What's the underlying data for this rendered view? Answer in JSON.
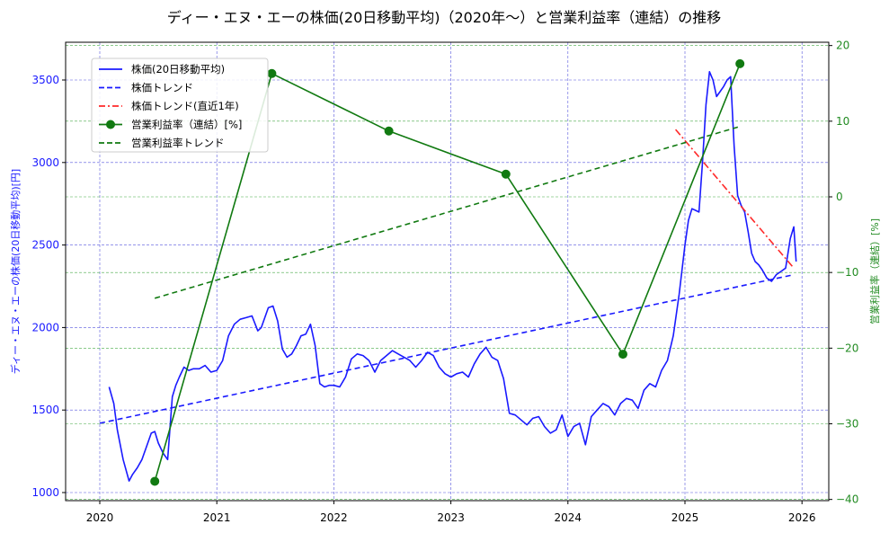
{
  "chart_data": {
    "type": "line",
    "title": "ディー・エヌ・エーの株価(20日移動平均)（2020年～）と営業利益率（連結）の推移",
    "xlabel": "",
    "ylabel_left": "ディー・エヌ・エーの株価(20日移動平均)[円]",
    "ylabel_right": "営業利益率（連結）[%]",
    "x_ticks": [
      "2020",
      "2021",
      "2022",
      "2023",
      "2024",
      "2025",
      "2026"
    ],
    "x_range": [
      2019.7,
      2026.23
    ],
    "ylim_left": [
      950,
      3730
    ],
    "yticks_left": [
      1000,
      1500,
      2000,
      2500,
      3000,
      3500
    ],
    "ylim_right": [
      -40.5,
      20.5
    ],
    "yticks_right": [
      -40,
      -30,
      -20,
      -10,
      0,
      10,
      20
    ],
    "grid": true,
    "legend_position": "upper left",
    "legend": [
      {
        "label": "株価(20日移動平均)",
        "style": "solid",
        "color": "#1a1aff",
        "marker": false
      },
      {
        "label": "株価トレンド",
        "style": "dashed",
        "color": "#1a1aff",
        "marker": false
      },
      {
        "label": "株価トレンド(直近1年)",
        "style": "dashdot",
        "color": "#ff2a2a",
        "marker": false
      },
      {
        "label": "営業利益率（連結）[%]",
        "style": "solid",
        "color": "#117a11",
        "marker": true
      },
      {
        "label": "営業利益率トレンド",
        "style": "dashed",
        "color": "#117a11",
        "marker": false
      }
    ],
    "series": [
      {
        "name": "株価(20日移動平均)",
        "axis": "left",
        "color": "#1a1aff",
        "x": [
          2020.08,
          2020.12,
          2020.15,
          2020.2,
          2020.25,
          2020.28,
          2020.32,
          2020.36,
          2020.4,
          2020.44,
          2020.47,
          2020.5,
          2020.54,
          2020.58,
          2020.62,
          2020.65,
          2020.68,
          2020.72,
          2020.76,
          2020.8,
          2020.85,
          2020.9,
          2020.95,
          2021.0,
          2021.05,
          2021.1,
          2021.15,
          2021.2,
          2021.25,
          2021.3,
          2021.35,
          2021.38,
          2021.41,
          2021.44,
          2021.48,
          2021.52,
          2021.56,
          2021.6,
          2021.64,
          2021.68,
          2021.72,
          2021.76,
          2021.8,
          2021.84,
          2021.88,
          2021.92,
          2021.96,
          2022.0,
          2022.05,
          2022.1,
          2022.15,
          2022.2,
          2022.25,
          2022.3,
          2022.35,
          2022.4,
          2022.45,
          2022.5,
          2022.55,
          2022.6,
          2022.65,
          2022.7,
          2022.75,
          2022.8,
          2022.85,
          2022.9,
          2022.95,
          2023.0,
          2023.05,
          2023.1,
          2023.15,
          2023.2,
          2023.25,
          2023.3,
          2023.35,
          2023.4,
          2023.45,
          2023.5,
          2023.55,
          2023.6,
          2023.65,
          2023.7,
          2023.75,
          2023.8,
          2023.85,
          2023.9,
          2023.95,
          2024.0,
          2024.05,
          2024.1,
          2024.15,
          2024.2,
          2024.25,
          2024.3,
          2024.35,
          2024.4,
          2024.45,
          2024.5,
          2024.55,
          2024.6,
          2024.65,
          2024.7,
          2024.75,
          2024.8,
          2024.85,
          2024.9,
          2024.95,
          2025.0,
          2025.03,
          2025.06,
          2025.09,
          2025.12,
          2025.15,
          2025.18,
          2025.21,
          2025.24,
          2025.27,
          2025.3,
          2025.33,
          2025.36,
          2025.39,
          2025.42,
          2025.45,
          2025.48,
          2025.51,
          2025.54,
          2025.57,
          2025.6,
          2025.63,
          2025.66,
          2025.7,
          2025.74,
          2025.78,
          2025.82,
          2025.86,
          2025.9,
          2025.93,
          2025.95
        ],
        "values": [
          1640,
          1540,
          1380,
          1200,
          1070,
          1110,
          1150,
          1200,
          1280,
          1360,
          1370,
          1300,
          1240,
          1200,
          1580,
          1650,
          1700,
          1760,
          1740,
          1750,
          1750,
          1770,
          1730,
          1740,
          1800,
          1950,
          2020,
          2050,
          2060,
          2070,
          1980,
          2000,
          2060,
          2120,
          2130,
          2040,
          1870,
          1820,
          1840,
          1890,
          1950,
          1960,
          2020,
          1890,
          1660,
          1640,
          1650,
          1650,
          1640,
          1700,
          1810,
          1840,
          1830,
          1800,
          1730,
          1800,
          1830,
          1860,
          1840,
          1820,
          1800,
          1760,
          1800,
          1850,
          1830,
          1760,
          1720,
          1700,
          1720,
          1730,
          1700,
          1780,
          1840,
          1880,
          1820,
          1800,
          1690,
          1480,
          1470,
          1440,
          1410,
          1450,
          1460,
          1400,
          1360,
          1380,
          1470,
          1340,
          1400,
          1420,
          1290,
          1460,
          1500,
          1540,
          1520,
          1470,
          1540,
          1570,
          1560,
          1510,
          1620,
          1660,
          1640,
          1740,
          1800,
          1950,
          2200,
          2500,
          2650,
          2720,
          2710,
          2700,
          3000,
          3350,
          3550,
          3500,
          3400,
          3430,
          3460,
          3500,
          3520,
          3100,
          2800,
          2740,
          2700,
          2580,
          2450,
          2400,
          2380,
          2350,
          2300,
          2280,
          2320,
          2340,
          2360,
          2540,
          2610,
          2400
        ],
        "style": "solid"
      },
      {
        "name": "株価トレンド",
        "axis": "left",
        "color": "#1a1aff",
        "x": [
          2020.0,
          2025.93
        ],
        "values": [
          1420,
          2320
        ],
        "style": "dashed"
      },
      {
        "name": "株価トレンド(直近1年)",
        "axis": "left",
        "color": "#ff2a2a",
        "x": [
          2024.92,
          2025.93
        ],
        "values": [
          3200,
          2360
        ],
        "style": "dashdot"
      },
      {
        "name": "営業利益率（連結）[%]",
        "axis": "right",
        "color": "#117a11",
        "x": [
          2020.47,
          2021.47,
          2022.47,
          2023.47,
          2024.47,
          2025.47
        ],
        "values": [
          -37.6,
          16.3,
          8.7,
          3.0,
          -20.8,
          17.6
        ],
        "style": "solid-marker"
      },
      {
        "name": "営業利益率トレンド",
        "axis": "right",
        "color": "#117a11",
        "x": [
          2020.47,
          2025.47
        ],
        "values": [
          -13.4,
          9.3
        ],
        "style": "dashed"
      }
    ]
  }
}
